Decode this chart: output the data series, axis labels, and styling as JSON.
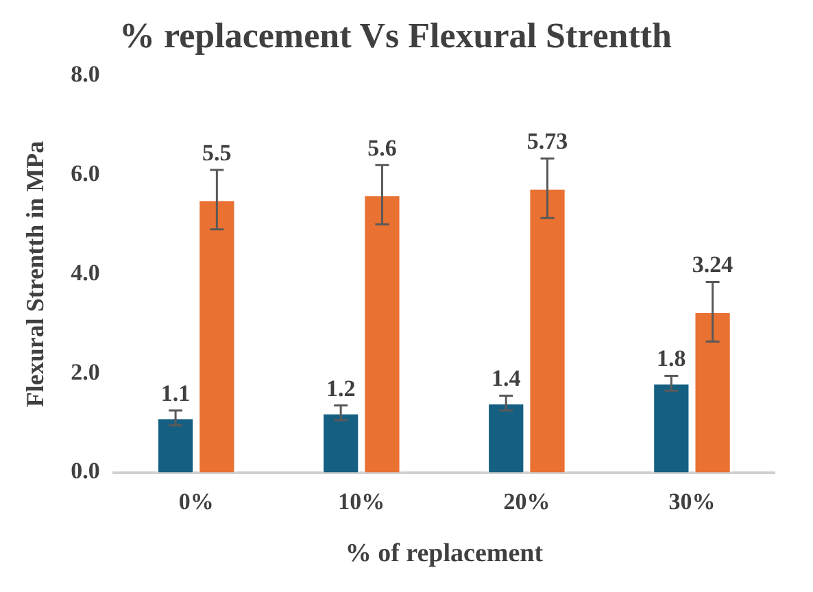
{
  "chart_data": {
    "type": "bar",
    "title": "% replacement Vs Flexural Strentth",
    "xlabel": "% of replacement",
    "ylabel": "Flexural Strentth in MPa",
    "categories": [
      "0%",
      "10%",
      "20%",
      "30%"
    ],
    "series": [
      {
        "color": "#156082",
        "values": [
          1.1,
          1.2,
          1.4,
          1.8
        ],
        "errors": [
          0.15,
          0.15,
          0.15,
          0.15
        ]
      },
      {
        "color": "#e97132",
        "values": [
          5.5,
          5.6,
          5.73,
          3.24
        ],
        "errors": [
          0.6,
          0.6,
          0.6,
          0.6
        ]
      }
    ],
    "ylim": [
      0,
      8
    ],
    "yticks": [
      {
        "value": 0,
        "label": "0.0"
      },
      {
        "value": 2,
        "label": "2.0"
      },
      {
        "value": 4,
        "label": "4.0"
      },
      {
        "value": 6,
        "label": "6.0"
      },
      {
        "value": 8,
        "label": "8.0"
      }
    ],
    "grid": false,
    "legend": false,
    "data_labels": true
  }
}
